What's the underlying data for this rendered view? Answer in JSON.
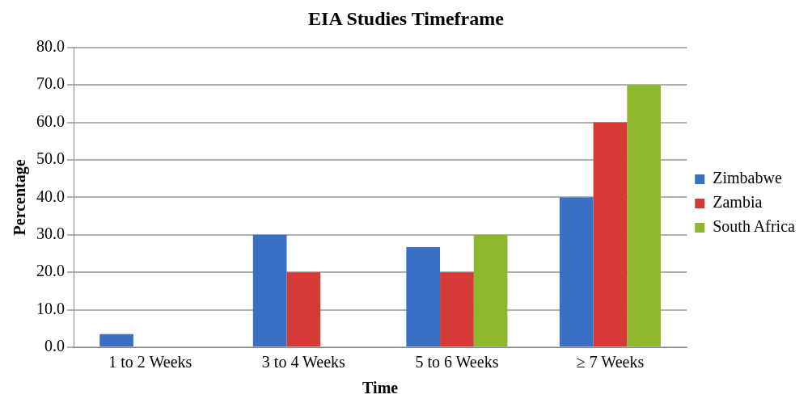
{
  "chart_data": {
    "type": "bar",
    "title": "EIA Studies Timeframe",
    "xlabel": "Time",
    "ylabel": "Percentage",
    "categories": [
      "1 to 2 Weeks",
      "3 to 4 Weeks",
      "5 to 6 Weeks",
      "≥ 7 Weeks"
    ],
    "series": [
      {
        "name": "Zimbabwe",
        "color": "#3a70c4",
        "values": [
          3.5,
          30,
          26.7,
          40
        ]
      },
      {
        "name": "Zambia",
        "color": "#d63a36",
        "values": [
          0,
          20,
          20,
          60
        ]
      },
      {
        "name": "South Africa",
        "color": "#8db82e",
        "values": [
          0,
          0,
          30,
          70
        ]
      }
    ],
    "ylim": [
      0,
      80
    ],
    "yticks": [
      {
        "value": 0,
        "label": "0.0"
      },
      {
        "value": 10,
        "label": "10.0"
      },
      {
        "value": 20,
        "label": "20.0"
      },
      {
        "value": 30,
        "label": "30.0"
      },
      {
        "value": 40,
        "label": "40.0"
      },
      {
        "value": 50,
        "label": "50.0"
      },
      {
        "value": 60,
        "label": "60.0"
      },
      {
        "value": 70,
        "label": "70.0"
      },
      {
        "value": 80,
        "label": "80.0"
      }
    ],
    "grid": "y",
    "legend": "right"
  }
}
